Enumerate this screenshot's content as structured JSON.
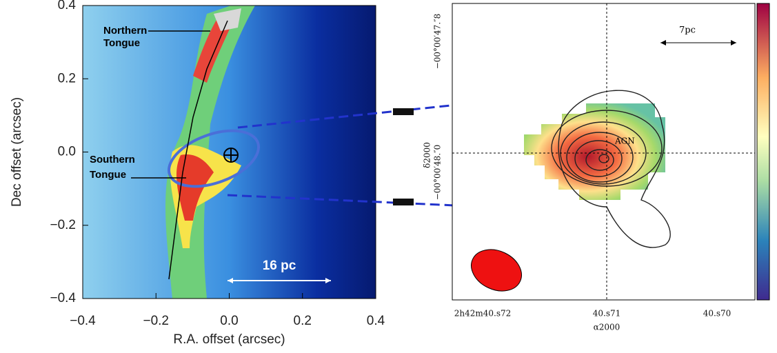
{
  "chart_data": [
    {
      "type": "map",
      "xlabel": "R.A. offset (arcsec)",
      "ylabel": "Dec offset (arcsec)",
      "xlim": [
        -0.4,
        0.4
      ],
      "ylim": [
        -0.4,
        0.4
      ],
      "xticks": [
        {
          "value": -0.4,
          "label": "−0.4"
        },
        {
          "value": -0.2,
          "label": "−0.2"
        },
        {
          "value": 0,
          "label": "0.0"
        },
        {
          "value": 0.2,
          "label": "0.2"
        },
        {
          "value": 0.4,
          "label": "0.4"
        }
      ],
      "yticks": [
        {
          "value": -0.4,
          "label": "−0.4"
        },
        {
          "value": -0.2,
          "label": "−0.2"
        },
        {
          "value": 0,
          "label": "0.0"
        },
        {
          "value": 0.2,
          "label": "0.2"
        },
        {
          "value": 0.4,
          "label": "0.4"
        }
      ],
      "annotations": [
        [
          "Northern",
          "Tongue"
        ],
        [
          "Southern",
          "Tongue"
        ],
        [
          "16 pc"
        ]
      ]
    },
    {
      "type": "map",
      "xlabel": "α2000",
      "ylabel": "δ2000",
      "xtick_labels": [
        "2h42m40.s72",
        "40.s71",
        "40.s70"
      ],
      "ytick_labels": [
        "−00°00′47.″8",
        "−00°00′48.″0"
      ],
      "annotations": [
        [
          "AGN"
        ],
        [
          "7pc"
        ]
      ]
    }
  ]
}
